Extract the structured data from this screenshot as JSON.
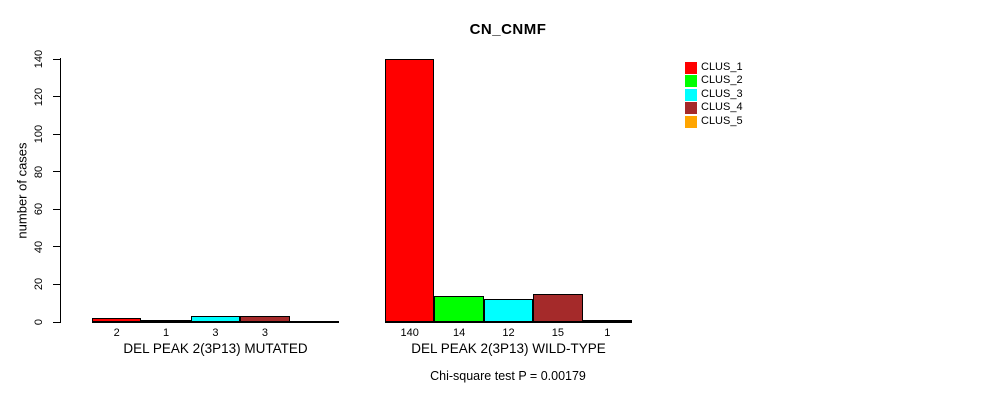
{
  "chart_data": {
    "type": "bar",
    "title": "CN_CNMF",
    "ylabel": "number of cases",
    "ylim": [
      0,
      140
    ],
    "yticks": [
      0,
      20,
      40,
      60,
      80,
      100,
      120,
      140
    ],
    "grid": false,
    "legend_position": "top-right-inside",
    "legend": [
      {
        "label": "CLUS_1",
        "color": "#FF0000"
      },
      {
        "label": "CLUS_2",
        "color": "#00FF00"
      },
      {
        "label": "CLUS_3",
        "color": "#00FFFF"
      },
      {
        "label": "CLUS_4",
        "color": "#A52A2A"
      },
      {
        "label": "CLUS_5",
        "color": "#FFA500"
      }
    ],
    "groups": [
      {
        "label": "DEL PEAK 2(3P13) MUTATED",
        "values": [
          2,
          1,
          3,
          3,
          0
        ],
        "bar_labels": [
          "2",
          "1",
          "3",
          "3",
          ""
        ]
      },
      {
        "label": "DEL PEAK 2(3P13) WILD-TYPE",
        "values": [
          140,
          14,
          12,
          15,
          1
        ],
        "bar_labels": [
          "140",
          "14",
          "12",
          "15",
          "1"
        ]
      }
    ],
    "footnote": "Chi-square test P = 0.00179",
    "axis_color": "#000000",
    "background": "#ffffff"
  }
}
